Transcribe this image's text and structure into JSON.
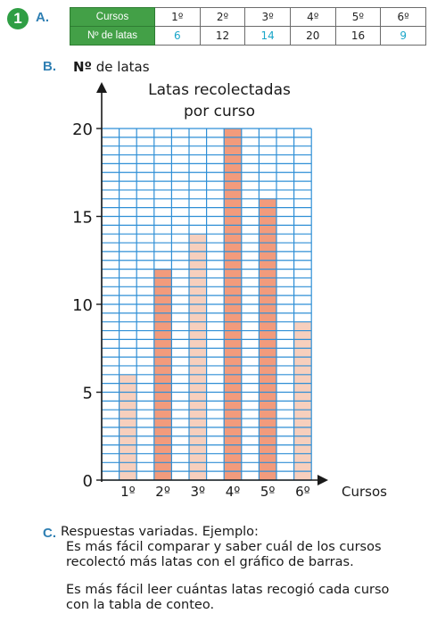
{
  "exercise_number": "1",
  "part_a": {
    "label": "A."
  },
  "table": {
    "row_header_1": "Cursos",
    "row_header_2": "Nº de latas",
    "courses": [
      "1º",
      "2º",
      "3º",
      "4º",
      "5º",
      "6º"
    ],
    "counts": [
      "6",
      "12",
      "14",
      "20",
      "16",
      "9"
    ]
  },
  "part_b": {
    "label": "B.",
    "ylabel_prefix": "Nº",
    "ylabel_suffix": " de latas"
  },
  "chart_data": {
    "type": "bar",
    "title": "Latas recolectadas por curso",
    "title_line1": "Latas recolectadas",
    "title_line2": "por curso",
    "xlabel": "Cursos",
    "ylabel": "Nº de latas",
    "categories": [
      "1º",
      "2º",
      "3º",
      "4º",
      "5º",
      "6º"
    ],
    "values": [
      6,
      12,
      14,
      20,
      16,
      9
    ],
    "ylim": [
      0,
      20
    ],
    "yticks": [
      0,
      5,
      10,
      15,
      20
    ],
    "grid": true,
    "colors": {
      "light_bar": "#f7cfbd",
      "dark_bar": "#f29b7c",
      "grid": "#2f8fd6"
    }
  },
  "part_c": {
    "label": "C.",
    "intro": "Respuestas variadas. Ejemplo:",
    "answer1_line1": "Es más fácil comparar y saber cuál de los cursos",
    "answer1_line2": "recolectó más latas con el gráfico de barras.",
    "answer2_line1": "Es más fácil leer cuántas latas recogió cada curso",
    "answer2_line2": "con la tabla de conteo."
  }
}
